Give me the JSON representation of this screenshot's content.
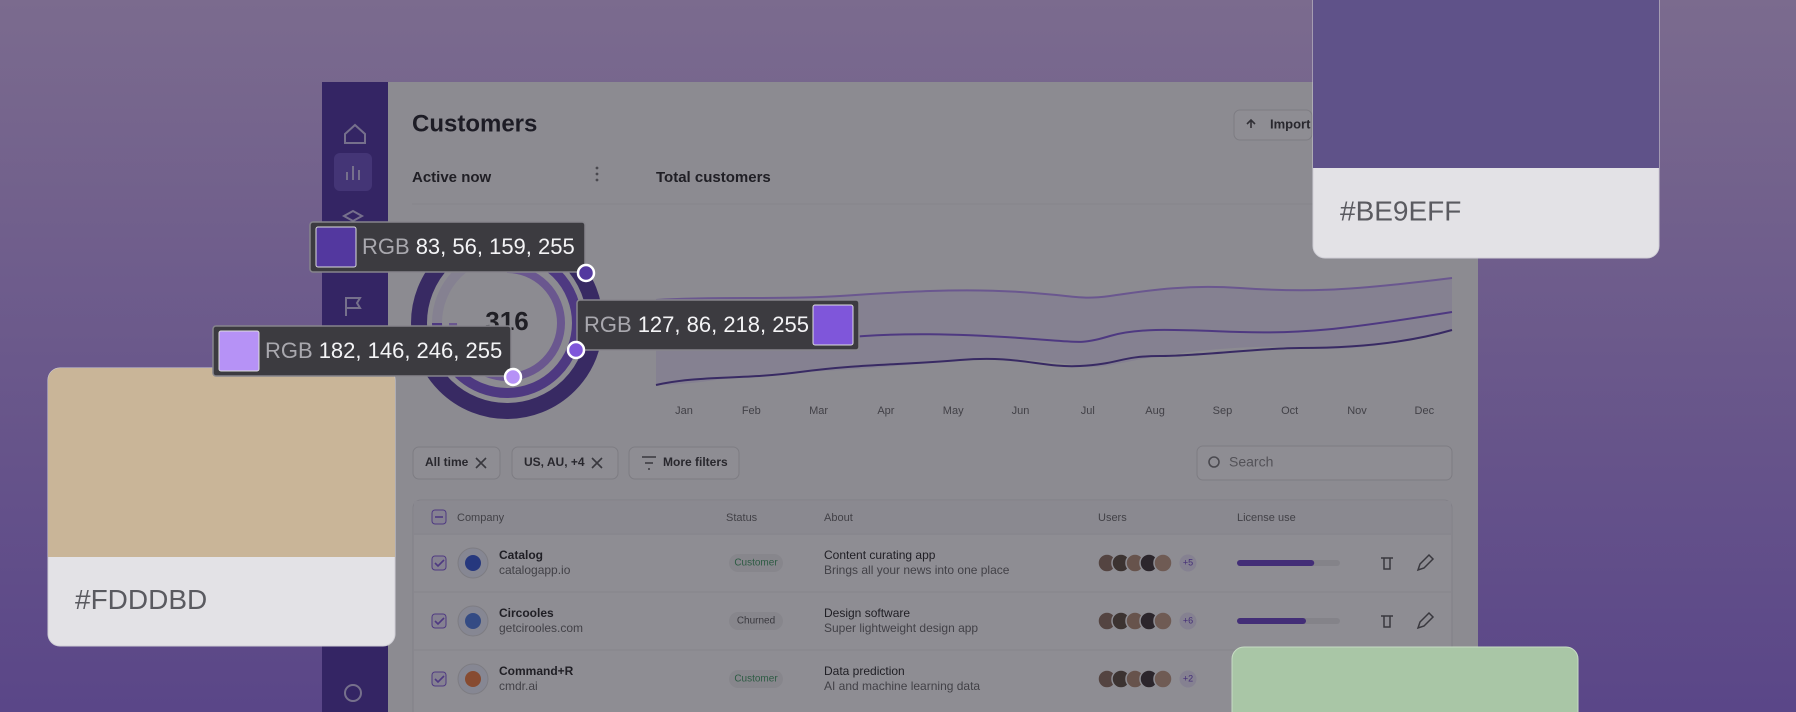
{
  "page": {
    "title": "Customers",
    "import_button": "Import"
  },
  "active_now": {
    "title": "Active now",
    "value": 316
  },
  "total_customers": {
    "title": "Total customers",
    "months": [
      "Jan",
      "Feb",
      "Mar",
      "Apr",
      "May",
      "Jun",
      "Jul",
      "Aug",
      "Sep",
      "Oct",
      "Nov",
      "Dec"
    ]
  },
  "filters": [
    "All time",
    "US, AU, +4"
  ],
  "more_filters": "More filters",
  "search_placeholder": "Search",
  "table": {
    "headers": [
      "Company",
      "Status",
      "About",
      "Users",
      "License use"
    ],
    "rows": [
      {
        "company": "Catalog",
        "domain": "catalogapp.io",
        "status": "Customer",
        "status_color": "#3d9a5f",
        "about_title": "Content curating app",
        "about_subtitle": "Brings all your news into one place",
        "users_extra": "+5",
        "license_use": 75
      },
      {
        "company": "Circooles",
        "domain": "getcirooles.com",
        "status": "Churned",
        "status_color": "#555555",
        "about_title": "Design software",
        "about_subtitle": "Super lightweight design app",
        "users_extra": "+6",
        "license_use": 67
      },
      {
        "company": "Command+R",
        "domain": "cmdr.ai",
        "status": "Customer",
        "status_color": "#3d9a5f",
        "about_title": "Data prediction",
        "about_subtitle": "AI and machine learning data",
        "users_extra": "+2"
      }
    ]
  },
  "swatch_cards": [
    {
      "hex": "#BE9EFF",
      "color": "#5f5289"
    },
    {
      "hex": "#FDDDBD",
      "color": "#c9b598"
    }
  ],
  "tooltips": [
    {
      "label": "RGB",
      "value": "83, 56, 159, 255",
      "color": "#53389f"
    },
    {
      "label": "RGB",
      "value": "127, 86, 218, 255",
      "color": "#7f56da"
    },
    {
      "label": "RGB",
      "value": "182, 146, 246, 255",
      "color": "#b692f6"
    }
  ]
}
